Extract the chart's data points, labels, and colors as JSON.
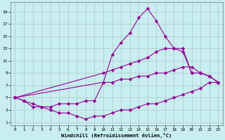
{
  "xlabel": "Windchill (Refroidissement éolien,°C)",
  "bg_color": "#c8eef0",
  "grid_color": "#b0cece",
  "line_color": "#990099",
  "xlim": [
    -0.5,
    23.5
  ],
  "ylim": [
    0.5,
    20.5
  ],
  "xticks": [
    0,
    1,
    2,
    3,
    4,
    5,
    6,
    7,
    8,
    9,
    10,
    11,
    12,
    13,
    14,
    15,
    16,
    17,
    18,
    19,
    20,
    21,
    22,
    23
  ],
  "yticks": [
    1,
    3,
    5,
    7,
    9,
    11,
    13,
    15,
    17,
    19
  ],
  "line1_x": [
    0,
    1,
    2,
    3,
    4,
    5,
    6,
    7,
    8,
    9,
    10,
    11,
    12,
    13,
    14,
    15,
    16,
    17,
    18,
    19,
    20,
    21,
    22,
    23
  ],
  "line1_y": [
    5,
    4.5,
    4,
    3.5,
    3.5,
    4,
    4,
    4,
    4.5,
    4.5,
    7.5,
    12,
    14,
    15.5,
    18,
    19.5,
    17.5,
    15,
    13,
    12.5,
    9,
    9,
    8.5,
    7.5
  ],
  "line2_x": [
    0,
    10,
    11,
    12,
    13,
    14,
    15,
    16,
    17,
    18,
    19,
    20,
    21,
    22,
    23
  ],
  "line2_y": [
    5,
    9,
    9.5,
    10,
    10.5,
    11,
    11.5,
    12.5,
    13,
    13,
    13,
    9,
    9,
    8.5,
    7.5
  ],
  "line3_x": [
    0,
    10,
    11,
    12,
    13,
    14,
    15,
    16,
    17,
    18,
    19,
    20,
    21,
    22,
    23
  ],
  "line3_y": [
    5,
    7.5,
    7.5,
    8,
    8,
    8.5,
    8.5,
    9,
    9,
    9.5,
    10,
    10,
    9,
    8.5,
    7.5
  ],
  "line4_x": [
    0,
    1,
    2,
    3,
    4,
    5,
    6,
    7,
    8,
    9,
    10,
    11,
    12,
    13,
    14,
    15,
    16,
    17,
    18,
    19,
    20,
    21,
    22,
    23
  ],
  "line4_y": [
    5,
    4.5,
    3.5,
    3.5,
    3,
    2.5,
    2.5,
    2,
    1.5,
    2,
    2,
    2.5,
    3,
    3,
    3.5,
    4,
    4,
    4.5,
    5,
    5.5,
    6,
    6.5,
    7.5,
    7.5
  ]
}
